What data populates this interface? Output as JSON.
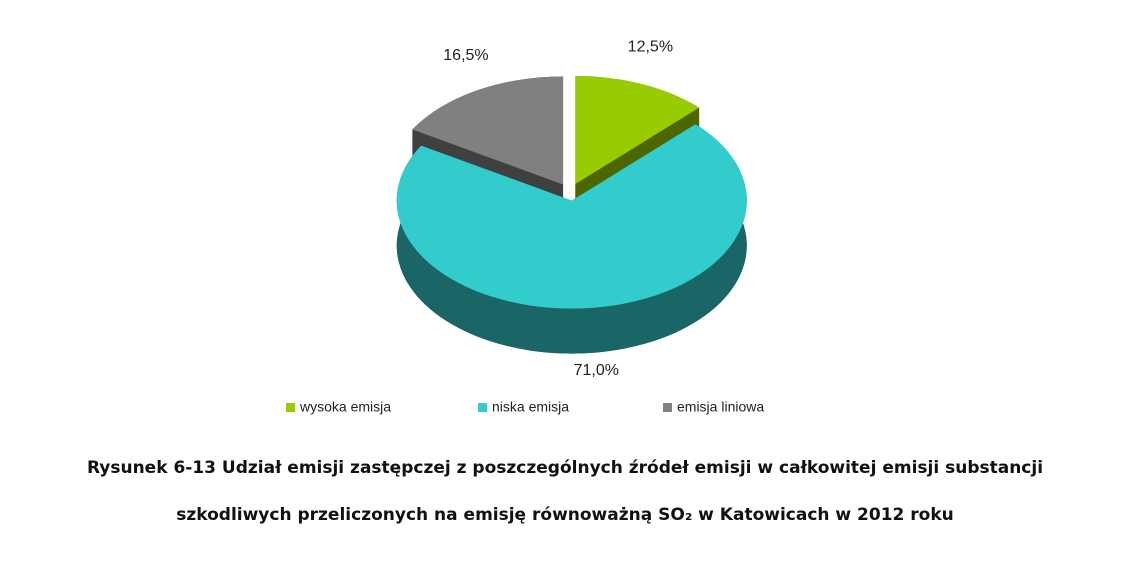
{
  "chart_data": {
    "type": "pie3d",
    "categories": [
      "wysoka emisja",
      "niska emisja",
      "emisja liniowa"
    ],
    "values": [
      12.5,
      71.0,
      16.5
    ],
    "value_labels": [
      "12,5%",
      "71,0%",
      "16,5%"
    ],
    "colors": [
      "#99cc00",
      "#33cccc",
      "#808080"
    ],
    "caption": [
      "Rysunek 6-13 Udział emisji zastępczej z poszczególnych źródeł emisji w całkowitej emisji substancji",
      "szkodliwych przeliczonych na emisję równoważną SO₂ w Katowicach w 2012 roku"
    ]
  }
}
